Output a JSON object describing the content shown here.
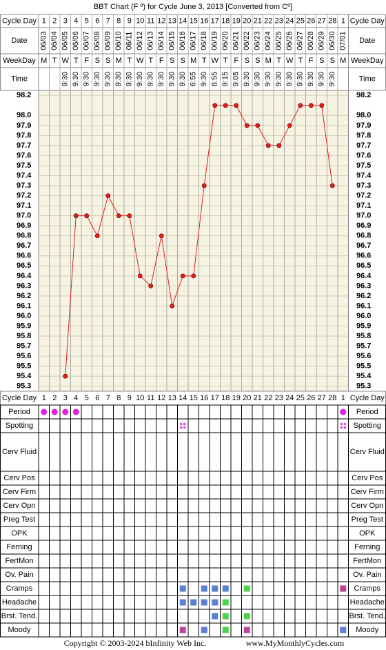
{
  "chart_data": {
    "type": "line",
    "title": "BBT Chart (F º) for Cycle June 3, 2013  [Converted from Cº]",
    "header_labels": [
      "Cycle Day",
      "Date",
      "WeekDay",
      "Time"
    ],
    "categories": [
      1,
      2,
      3,
      4,
      5,
      6,
      7,
      8,
      9,
      10,
      11,
      12,
      13,
      14,
      15,
      16,
      17,
      18,
      19,
      20,
      21,
      22,
      23,
      24,
      25,
      26,
      27,
      28,
      1
    ],
    "dates": [
      "06/03",
      "06/04",
      "06/05",
      "06/06",
      "06/07",
      "06/08",
      "06/09",
      "06/10",
      "06/11",
      "06/12",
      "06/13",
      "06/14",
      "06/15",
      "06/16",
      "06/17",
      "06/18",
      "06/19",
      "06/20",
      "06/21",
      "06/22",
      "06/23",
      "06/24",
      "06/25",
      "06/26",
      "06/27",
      "06/28",
      "06/29",
      "06/30",
      "07/01"
    ],
    "weekdays": [
      "M",
      "T",
      "W",
      "T",
      "F",
      "S",
      "S",
      "M",
      "T",
      "W",
      "T",
      "F",
      "S",
      "S",
      "M",
      "T",
      "W",
      "T",
      "F",
      "S",
      "S",
      "M",
      "T",
      "W",
      "T",
      "F",
      "S",
      "S",
      "M"
    ],
    "times": [
      null,
      null,
      "9:30",
      "9:30",
      "9:30",
      "9:30",
      "9:30",
      "9:30",
      "9:30",
      "9:30",
      "9:30",
      "9:30",
      "9:30",
      "9:30",
      "6:55",
      "9:30",
      "8:55",
      "9:15",
      "9:05",
      "9:30",
      "9:30",
      "9:30",
      "9:30",
      "9:30",
      "9:30",
      "9:30",
      "9:30",
      "9:30",
      null
    ],
    "values": [
      null,
      null,
      95.4,
      97.0,
      97.0,
      96.8,
      97.2,
      97.0,
      97.0,
      96.4,
      96.3,
      96.8,
      96.1,
      96.4,
      96.4,
      97.3,
      98.1,
      98.1,
      98.1,
      97.9,
      97.9,
      97.7,
      97.7,
      97.9,
      98.1,
      98.1,
      98.1,
      97.3,
      null
    ],
    "color": "#e02020",
    "ylim": [
      95.25,
      98.25
    ],
    "yticks": [
      98.2,
      {
        "value": 98,
        "label": "98.0"
      },
      97.9,
      97.8,
      97.7,
      97.6,
      97.5,
      97.4,
      97.3,
      97.2,
      97.1,
      {
        "value": 97,
        "label": "97.0"
      },
      96.9,
      96.8,
      96.7,
      96.6,
      96.5,
      96.4,
      96.3,
      96.2,
      96.1,
      {
        "value": 96,
        "label": "96.0"
      },
      95.9,
      95.8,
      95.7,
      95.6,
      95.5,
      95.4,
      95.3
    ],
    "grid": true,
    "symptoms": [
      {
        "label": "Period",
        "shape": "circle",
        "marks": [
          "#e020e0",
          "#e020e0",
          "#e020e0",
          "#e020e0",
          null,
          null,
          null,
          null,
          null,
          null,
          null,
          null,
          null,
          null,
          null,
          null,
          null,
          null,
          null,
          null,
          null,
          null,
          null,
          null,
          null,
          null,
          null,
          null,
          "#e020e0"
        ]
      },
      {
        "label": "Spotting",
        "shape": "dots",
        "marks": [
          null,
          null,
          null,
          null,
          null,
          null,
          null,
          null,
          null,
          null,
          null,
          null,
          null,
          "#e040e0",
          null,
          null,
          null,
          null,
          null,
          null,
          null,
          null,
          null,
          null,
          null,
          null,
          null,
          null,
          "#e040e0"
        ]
      },
      {
        "label": "Cerv Fluid"
      },
      {
        "label": "Cerv Pos"
      },
      {
        "label": "Cerv Firm"
      },
      {
        "label": "Cerv Opn"
      },
      {
        "label": "Preg Test"
      },
      {
        "label": "OPK"
      },
      {
        "label": "Ferning"
      },
      {
        "label": "FertMon"
      },
      {
        "label": "Ov. Pain"
      },
      {
        "label": "Cramps",
        "shape": "square",
        "marks": [
          null,
          null,
          null,
          null,
          null,
          null,
          null,
          null,
          null,
          null,
          null,
          null,
          null,
          "#5b7fd6",
          null,
          "#5b7fd6",
          "#5b7fd6",
          "#5b7fd6",
          null,
          "#4cd44c",
          null,
          null,
          null,
          null,
          null,
          null,
          null,
          null,
          "#c04090"
        ]
      },
      {
        "label": "Headache",
        "shape": "square",
        "marks": [
          null,
          null,
          null,
          null,
          null,
          null,
          null,
          null,
          null,
          null,
          null,
          null,
          null,
          "#5b7fd6",
          "#5b7fd6",
          "#5b7fd6",
          "#5b7fd6",
          "#4cd44c",
          null,
          null,
          null,
          null,
          null,
          null,
          null,
          null,
          null,
          null,
          null
        ]
      },
      {
        "label": "Brst. Tend.",
        "shape": "square",
        "marks": [
          null,
          null,
          null,
          null,
          null,
          null,
          null,
          null,
          null,
          null,
          null,
          null,
          null,
          null,
          null,
          null,
          "#5b7fd6",
          "#4cd44c",
          null,
          "#4cd44c",
          null,
          null,
          null,
          null,
          null,
          null,
          null,
          null,
          null
        ]
      },
      {
        "label": "Moody",
        "shape": "square",
        "marks": [
          null,
          null,
          null,
          null,
          null,
          null,
          null,
          null,
          null,
          null,
          null,
          null,
          null,
          "#c040a0",
          null,
          "#5b7fd6",
          null,
          "#4cd44c",
          null,
          "#c040a0",
          null,
          null,
          null,
          null,
          null,
          null,
          null,
          null,
          "#5b7fd6"
        ]
      }
    ],
    "footer": [
      "Copyright © 2003-2024 bInfinity Web Inc.",
      "www.MyMonthlyCycles.com"
    ]
  }
}
